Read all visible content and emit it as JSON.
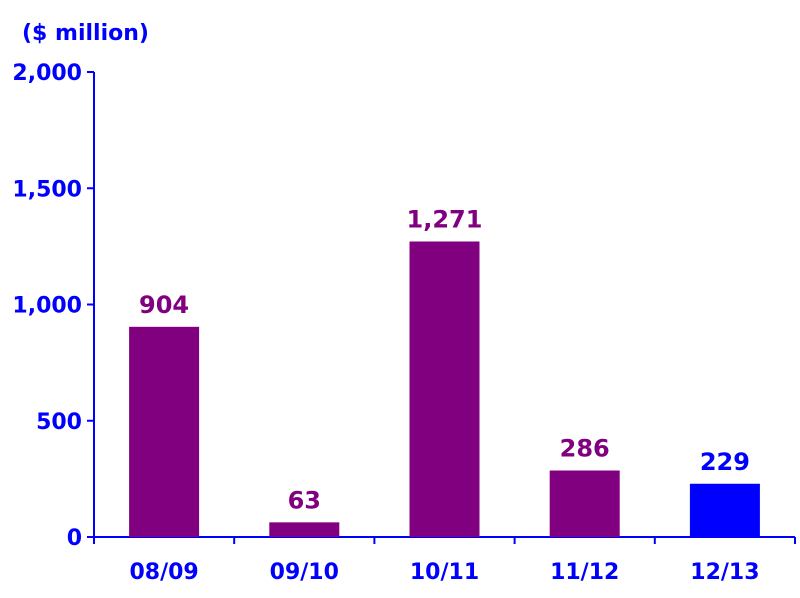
{
  "chart_data": {
    "type": "bar",
    "unit_label": "($ million)",
    "categories": [
      "08/09",
      "09/10",
      "10/11",
      "11/12",
      "12/13"
    ],
    "values": [
      904,
      63,
      1271,
      286,
      229
    ],
    "value_labels": [
      "904",
      "63",
      "1,271",
      "286",
      "229"
    ],
    "ylim": [
      0,
      2000
    ],
    "yticks": [
      0,
      500,
      1000,
      1500,
      2000
    ],
    "ytick_labels": [
      "0",
      "500",
      "1,000",
      "1,500",
      "2,000"
    ],
    "grid": false,
    "colors": {
      "default_bar": "#800080",
      "highlight_bar": "#0000ff",
      "axis": "#0000ff",
      "highlight_label": "#0000ff",
      "default_label": "#800080"
    },
    "highlight_index": 4
  }
}
